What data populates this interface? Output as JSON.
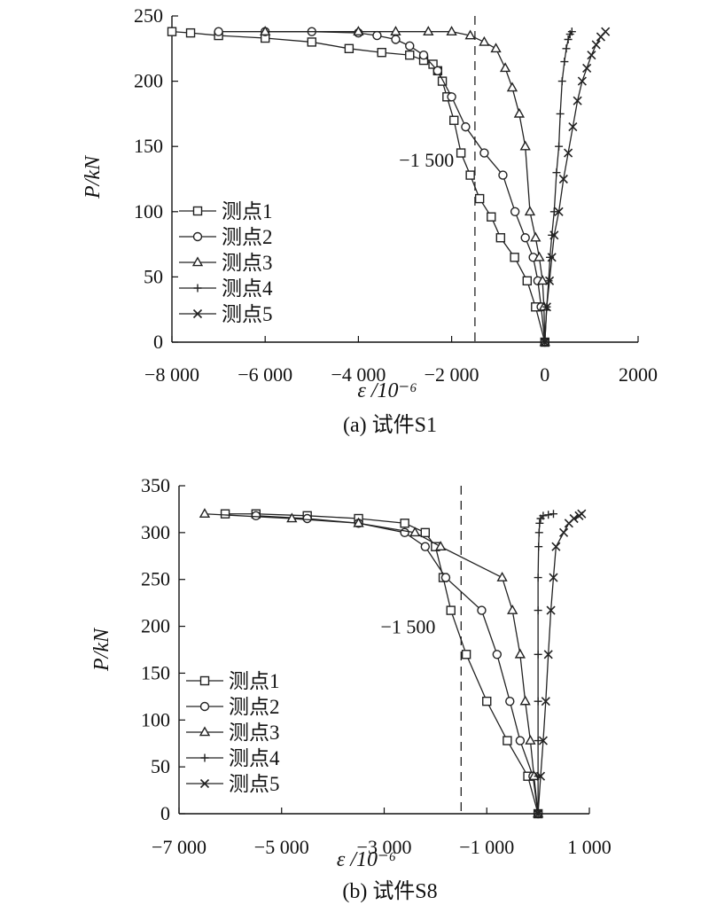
{
  "chart_data": [
    {
      "type": "line",
      "caption": "(a) 试件S1",
      "ylabel": "P/kN",
      "xlabel": "ε /10⁻⁶",
      "xlim": [
        -8000,
        2000
      ],
      "ylim": [
        0,
        250
      ],
      "x_ticks": [
        -8000,
        -6000,
        -4000,
        -2000,
        0,
        2000
      ],
      "x_tick_labels": [
        "−8 000",
        "−6 000",
        "−4 000",
        "−2 000",
        "0",
        "2000"
      ],
      "y_ticks": [
        0,
        50,
        100,
        150,
        200,
        250
      ],
      "y_tick_labels": [
        "0",
        "50",
        "100",
        "150",
        "200",
        "250"
      ],
      "reference_line": {
        "x": -1500,
        "label": "−1 500",
        "style": "dashed"
      },
      "legend_position": "left",
      "series": [
        {
          "name": "测点1",
          "marker": "square",
          "x": [
            0,
            -200,
            -380,
            -650,
            -950,
            -1150,
            -1400,
            -1600,
            -1800,
            -1950,
            -2100,
            -2200,
            -2300,
            -2400,
            -2600,
            -2900,
            -3500,
            -4200,
            -5000,
            -6000,
            -7000,
            -7600,
            -8000
          ],
          "y": [
            0,
            27,
            47,
            65,
            80,
            96,
            110,
            128,
            145,
            170,
            188,
            200,
            208,
            213,
            216,
            220,
            222,
            225,
            230,
            233,
            235,
            237,
            238
          ]
        },
        {
          "name": "测点2",
          "marker": "circle",
          "x": [
            0,
            -80,
            -150,
            -250,
            -420,
            -640,
            -900,
            -1300,
            -1700,
            -2000,
            -2300,
            -2600,
            -2900,
            -3200,
            -3600,
            -4000,
            -5000,
            -6000,
            -7000
          ],
          "y": [
            0,
            27,
            47,
            65,
            80,
            100,
            128,
            145,
            165,
            188,
            208,
            220,
            227,
            232,
            235,
            237,
            238,
            238,
            238
          ]
        },
        {
          "name": "测点3",
          "marker": "triangle",
          "x": [
            0,
            -20,
            -50,
            -120,
            -200,
            -320,
            -420,
            -550,
            -700,
            -850,
            -1050,
            -1300,
            -1600,
            -2000,
            -2500,
            -3200,
            -4000,
            -6000
          ],
          "y": [
            0,
            27,
            47,
            65,
            80,
            100,
            150,
            175,
            195,
            210,
            225,
            230,
            235,
            238,
            238,
            238,
            238,
            238
          ]
        },
        {
          "name": "测点4",
          "marker": "plus",
          "x": [
            0,
            40,
            80,
            110,
            150,
            200,
            250,
            300,
            330,
            370,
            420,
            460,
            500,
            540,
            580
          ],
          "y": [
            0,
            27,
            47,
            65,
            82,
            100,
            130,
            150,
            175,
            200,
            215,
            225,
            232,
            236,
            238
          ]
        },
        {
          "name": "测点5",
          "marker": "x",
          "x": [
            0,
            40,
            100,
            150,
            200,
            300,
            400,
            500,
            600,
            700,
            800,
            900,
            1000,
            1100,
            1200,
            1300
          ],
          "y": [
            0,
            27,
            47,
            65,
            82,
            100,
            125,
            145,
            165,
            185,
            200,
            210,
            220,
            228,
            234,
            238
          ]
        }
      ]
    },
    {
      "type": "line",
      "caption": "(b) 试件S8",
      "ylabel": "P/kN",
      "xlabel": "ε /10⁻⁶",
      "xlim": [
        -7000,
        1000
      ],
      "ylim": [
        0,
        350
      ],
      "x_ticks": [
        -7000,
        -5000,
        -3000,
        -1000,
        1000
      ],
      "x_tick_labels": [
        "−7 000",
        "−5 000",
        "−3 000",
        "−1 000",
        "1 000"
      ],
      "y_ticks": [
        0,
        50,
        100,
        150,
        200,
        250,
        300,
        350
      ],
      "y_tick_labels": [
        "0",
        "50",
        "100",
        "150",
        "200",
        "250",
        "300",
        "350"
      ],
      "reference_line": {
        "x": -1500,
        "label": "−1 500",
        "style": "dashed"
      },
      "legend_position": "left",
      "series": [
        {
          "name": "测点1",
          "marker": "square",
          "x": [
            0,
            -200,
            -600,
            -1000,
            -1400,
            -1700,
            -1850,
            -2000,
            -2200,
            -2600,
            -3500,
            -4500,
            -5500,
            -6100
          ],
          "y": [
            0,
            40,
            78,
            120,
            170,
            217,
            252,
            285,
            300,
            310,
            315,
            318,
            320,
            320
          ]
        },
        {
          "name": "测点2",
          "marker": "circle",
          "x": [
            0,
            -100,
            -350,
            -550,
            -800,
            -1100,
            -1800,
            -2200,
            -2600,
            -3500,
            -4500,
            -5500
          ],
          "y": [
            0,
            40,
            78,
            120,
            170,
            217,
            252,
            285,
            300,
            310,
            315,
            318
          ]
        },
        {
          "name": "测点3",
          "marker": "triangle",
          "x": [
            0,
            -80,
            -150,
            -250,
            -350,
            -500,
            -700,
            -1900,
            -2400,
            -3500,
            -4800,
            -6500
          ],
          "y": [
            0,
            40,
            78,
            120,
            170,
            217,
            252,
            285,
            300,
            310,
            315,
            320
          ]
        },
        {
          "name": "测点4",
          "marker": "plus",
          "x": [
            0,
            0,
            0,
            0,
            0,
            0,
            0,
            10,
            20,
            30,
            50,
            100,
            200,
            300
          ],
          "y": [
            0,
            40,
            78,
            120,
            170,
            217,
            252,
            285,
            300,
            310,
            315,
            318,
            319,
            320
          ]
        },
        {
          "name": "测点5",
          "marker": "x",
          "x": [
            0,
            50,
            100,
            150,
            200,
            250,
            300,
            350,
            500,
            600,
            700,
            800,
            850
          ],
          "y": [
            0,
            40,
            78,
            120,
            170,
            217,
            252,
            285,
            300,
            310,
            315,
            318,
            320
          ]
        }
      ]
    }
  ]
}
